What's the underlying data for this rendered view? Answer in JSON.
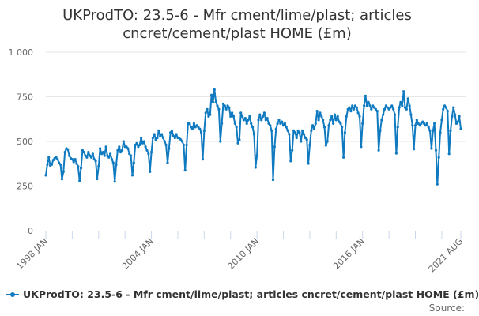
{
  "chart_data": {
    "type": "line",
    "title": "UKProdTO: 23.5-6 - Mfr cment/lime/plast; articles cncret/cement/plast HOME (£m)",
    "xlabel": "",
    "ylabel": "",
    "x_start": "1998-01",
    "x_end": "2021-08",
    "x_frequency": "monthly",
    "x_tick_labels": [
      "1998 JAN",
      "2004 JAN",
      "2010 JAN",
      "2016 JAN",
      "2021 AUG"
    ],
    "y_tick_labels": [
      "0",
      "250",
      "500",
      "750",
      "1 000"
    ],
    "ylim": [
      0,
      1000
    ],
    "grid": "horizontal",
    "legend_position": "bottom-left",
    "color": "#0f7ac0",
    "series": [
      {
        "name": "UKProdTO: 23.5-6 - Mfr cment/lime/plast; articles cncret/cement/plast HOME (£m)",
        "values": [
          310,
          370,
          410,
          365,
          370,
          395,
          405,
          410,
          400,
          380,
          370,
          289,
          330,
          440,
          460,
          455,
          420,
          405,
          400,
          385,
          400,
          375,
          360,
          280,
          350,
          450,
          440,
          420,
          410,
          440,
          420,
          410,
          430,
          400,
          390,
          290,
          360,
          460,
          430,
          440,
          420,
          470,
          420,
          410,
          430,
          400,
          380,
          275,
          370,
          450,
          470,
          440,
          450,
          500,
          470,
          470,
          460,
          430,
          420,
          310,
          380,
          480,
          490,
          470,
          480,
          520,
          490,
          500,
          470,
          450,
          430,
          330,
          440,
          520,
          540,
          510,
          520,
          560,
          530,
          540,
          520,
          500,
          480,
          380,
          460,
          550,
          560,
          530,
          520,
          540,
          520,
          520,
          510,
          500,
          480,
          338,
          480,
          600,
          600,
          580,
          570,
          600,
          580,
          590,
          580,
          570,
          550,
          400,
          560,
          660,
          680,
          640,
          650,
          760,
          720,
          790,
          720,
          700,
          680,
          500,
          600,
          710,
          700,
          680,
          700,
          690,
          640,
          660,
          640,
          600,
          580,
          490,
          510,
          660,
          640,
          620,
          630,
          600,
          620,
          640,
          600,
          580,
          540,
          354,
          420,
          620,
          650,
          620,
          640,
          660,
          620,
          630,
          600,
          590,
          560,
          285,
          470,
          570,
          600,
          620,
          600,
          610,
          590,
          600,
          580,
          560,
          540,
          390,
          450,
          560,
          550,
          520,
          560,
          550,
          500,
          560,
          540,
          520,
          510,
          376,
          480,
          560,
          590,
          570,
          600,
          670,
          620,
          660,
          640,
          620,
          580,
          478,
          500,
          590,
          620,
          640,
          600,
          650,
          620,
          640,
          610,
          600,
          580,
          410,
          550,
          640,
          680,
          690,
          670,
          700,
          680,
          700,
          690,
          660,
          640,
          470,
          600,
          700,
          755,
          700,
          720,
          700,
          680,
          700,
          690,
          680,
          670,
          450,
          560,
          620,
          650,
          680,
          700,
          690,
          680,
          690,
          700,
          680,
          650,
          433,
          580,
          690,
          720,
          700,
          780,
          690,
          680,
          740,
          700,
          650,
          590,
          457,
          590,
          620,
          600,
          590,
          600,
          610,
          600,
          590,
          600,
          580,
          560,
          460,
          560,
          600,
          450,
          260,
          410,
          550,
          620,
          680,
          700,
          690,
          670,
          430,
          560,
          640,
          690,
          650,
          600,
          610,
          640,
          570
        ]
      }
    ]
  },
  "source_label": "Source:"
}
